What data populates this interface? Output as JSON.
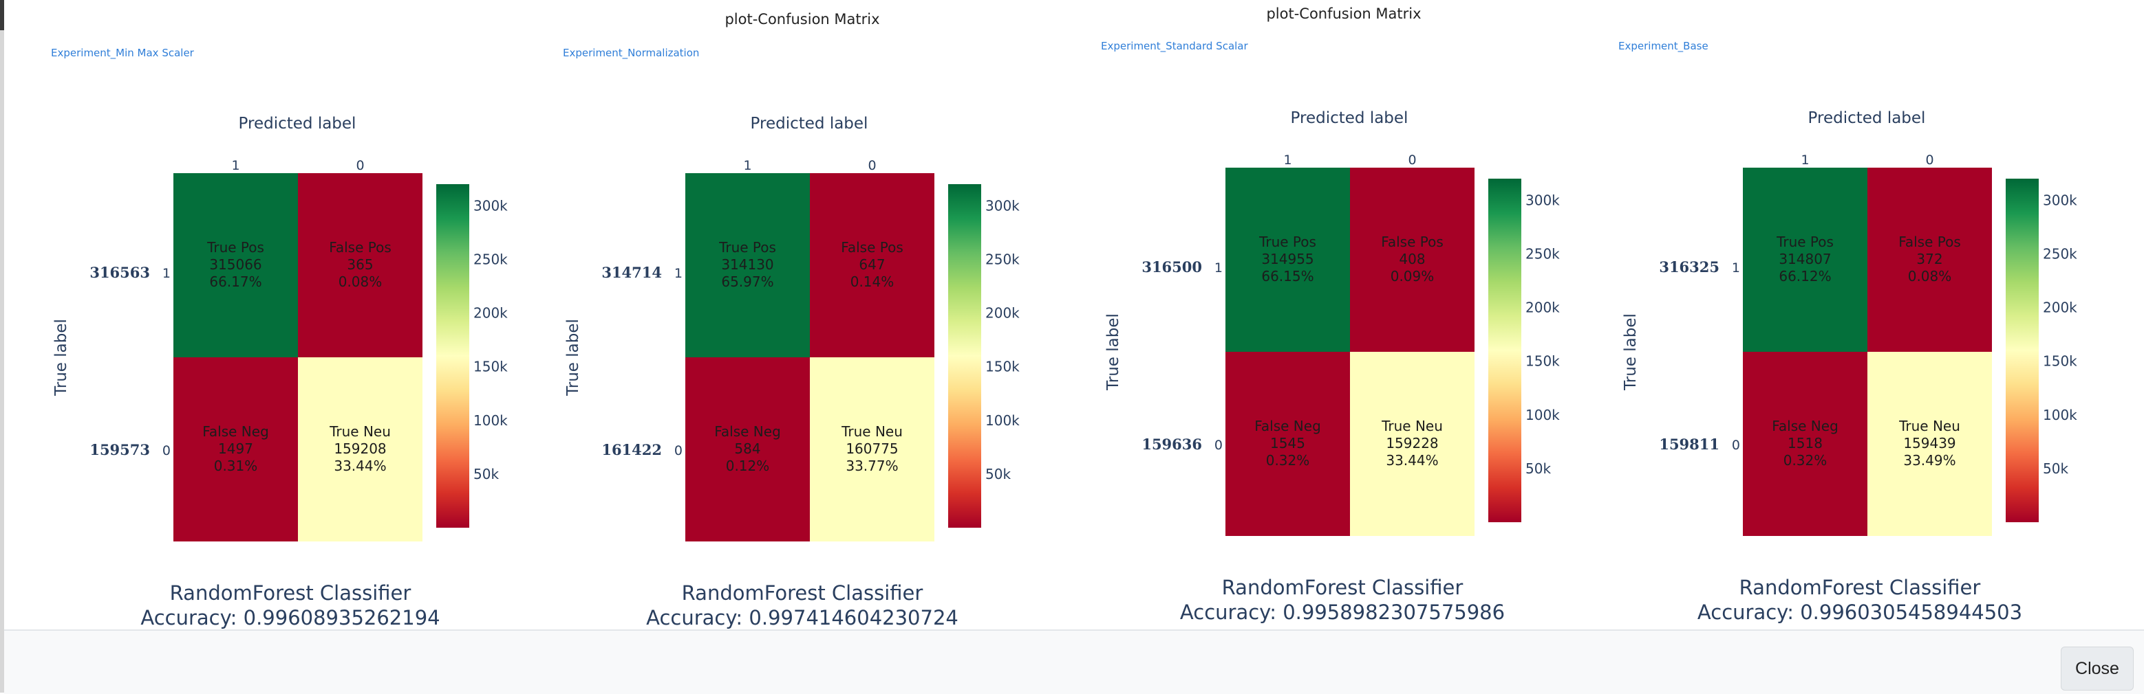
{
  "page": {
    "plot_titles": [
      "plot-Confusion Matrix",
      "plot-Confusion Matrix"
    ],
    "close_label": "Close"
  },
  "colorscale": {
    "name": "RdYlGn",
    "stops": [
      "#a50026",
      "#d73027",
      "#f46d43",
      "#fdae61",
      "#fee08b",
      "#ffffbf",
      "#d9ef8b",
      "#a6d96a",
      "#66bd63",
      "#1a9850",
      "#006837"
    ]
  },
  "chart_data": [
    {
      "type": "heatmap",
      "experiment": "Experiment_Min Max Scaler",
      "x_title": "Predicted label",
      "y_title": "True label",
      "x_categories": [
        "1",
        "0"
      ],
      "y_categories": [
        "1",
        "0"
      ],
      "row_totals": [
        "316563",
        "159573"
      ],
      "values": [
        [
          315066,
          365
        ],
        [
          1497,
          159208
        ]
      ],
      "cell_text": [
        [
          [
            "True Pos",
            "315066",
            "66.17%"
          ],
          [
            "False Pos",
            "365",
            "0.08%"
          ]
        ],
        [
          [
            "False Neg",
            "1497",
            "0.31%"
          ],
          [
            "True Neu",
            "159208",
            "33.44%"
          ]
        ]
      ],
      "colorbar_ticks": [
        "300k",
        "250k",
        "200k",
        "150k",
        "100k",
        "50k"
      ],
      "zlim": [
        0,
        320000
      ],
      "caption": "RandomForest Classifier",
      "accuracy": "Accuracy: 0.99608935262194"
    },
    {
      "type": "heatmap",
      "experiment": "Experiment_Normalization",
      "x_title": "Predicted label",
      "y_title": "True label",
      "x_categories": [
        "1",
        "0"
      ],
      "y_categories": [
        "1",
        "0"
      ],
      "row_totals": [
        "314714",
        "161422"
      ],
      "values": [
        [
          314130,
          647
        ],
        [
          584,
          160775
        ]
      ],
      "cell_text": [
        [
          [
            "True Pos",
            "314130",
            "65.97%"
          ],
          [
            "False Pos",
            "647",
            "0.14%"
          ]
        ],
        [
          [
            "False Neg",
            "584",
            "0.12%"
          ],
          [
            "True Neu",
            "160775",
            "33.77%"
          ]
        ]
      ],
      "colorbar_ticks": [
        "300k",
        "250k",
        "200k",
        "150k",
        "100k",
        "50k"
      ],
      "zlim": [
        0,
        320000
      ],
      "caption": "RandomForest Classifier",
      "accuracy": "Accuracy: 0.997414604230724"
    },
    {
      "type": "heatmap",
      "experiment": "Experiment_Standard Scalar",
      "x_title": "Predicted label",
      "y_title": "True label",
      "x_categories": [
        "1",
        "0"
      ],
      "y_categories": [
        "1",
        "0"
      ],
      "row_totals": [
        "316500",
        "159636"
      ],
      "values": [
        [
          314955,
          408
        ],
        [
          1545,
          159228
        ]
      ],
      "cell_text": [
        [
          [
            "True Pos",
            "314955",
            "66.15%"
          ],
          [
            "False Pos",
            "408",
            "0.09%"
          ]
        ],
        [
          [
            "False Neg",
            "1545",
            "0.32%"
          ],
          [
            "True Neu",
            "159228",
            "33.44%"
          ]
        ]
      ],
      "colorbar_ticks": [
        "300k",
        "250k",
        "200k",
        "150k",
        "100k",
        "50k"
      ],
      "zlim": [
        0,
        320000
      ],
      "caption": "RandomForest Classifier",
      "accuracy": "Accuracy: 0.9958982307575986"
    },
    {
      "type": "heatmap",
      "experiment": "Experiment_Base",
      "x_title": "Predicted label",
      "y_title": "True label",
      "x_categories": [
        "1",
        "0"
      ],
      "y_categories": [
        "1",
        "0"
      ],
      "row_totals": [
        "316325",
        "159811"
      ],
      "values": [
        [
          314807,
          372
        ],
        [
          1518,
          159439
        ]
      ],
      "cell_text": [
        [
          [
            "True Pos",
            "314807",
            "66.12%"
          ],
          [
            "False Pos",
            "372",
            "0.08%"
          ]
        ],
        [
          [
            "False Neg",
            "1518",
            "0.32%"
          ],
          [
            "True Neu",
            "159439",
            "33.49%"
          ]
        ]
      ],
      "colorbar_ticks": [
        "300k",
        "250k",
        "200k",
        "150k",
        "100k",
        "50k"
      ],
      "zlim": [
        0,
        320000
      ],
      "caption": "RandomForest Classifier",
      "accuracy": "Accuracy: 0.9960305458944503"
    }
  ]
}
